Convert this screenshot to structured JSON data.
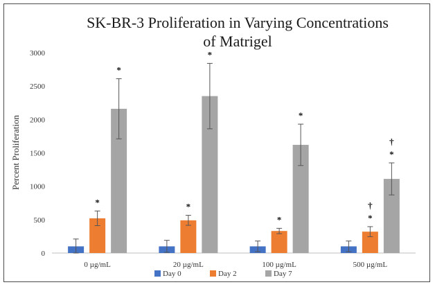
{
  "chart_data": {
    "type": "bar",
    "title_lines": [
      "SK-BR-3 Proliferation in Varying Concentrations",
      "of Matrigel"
    ],
    "ylabel": "Percent Proliferation",
    "xlabel": "",
    "ylim": [
      0,
      3000
    ],
    "yticks": [
      0,
      500,
      1000,
      1500,
      2000,
      2500,
      3000
    ],
    "grid": false,
    "legend_position": "bottom",
    "categories": [
      "0 µg/mL",
      "20 µg/mL",
      "100 µg/mL",
      "500 µg/mL"
    ],
    "series": [
      {
        "name": "Day 0",
        "color": "#4472C4",
        "values": [
          100,
          100,
          100,
          100
        ],
        "errors": [
          110,
          90,
          80,
          80
        ]
      },
      {
        "name": "Day 2",
        "color": "#ED7D31",
        "values": [
          520,
          490,
          330,
          320
        ],
        "errors": [
          110,
          75,
          40,
          75
        ]
      },
      {
        "name": "Day 7",
        "color": "#A5A5A5",
        "values": [
          2160,
          2350,
          1620,
          1110
        ],
        "errors": [
          450,
          490,
          310,
          240
        ]
      }
    ],
    "annotations": [
      [
        [],
        [
          "*"
        ],
        [
          "*"
        ]
      ],
      [
        [],
        [
          "*"
        ],
        [
          "*"
        ]
      ],
      [
        [],
        [
          "*"
        ],
        [
          "*"
        ]
      ],
      [
        [],
        [
          "*",
          "†"
        ],
        [
          "*",
          "†"
        ]
      ]
    ]
  }
}
